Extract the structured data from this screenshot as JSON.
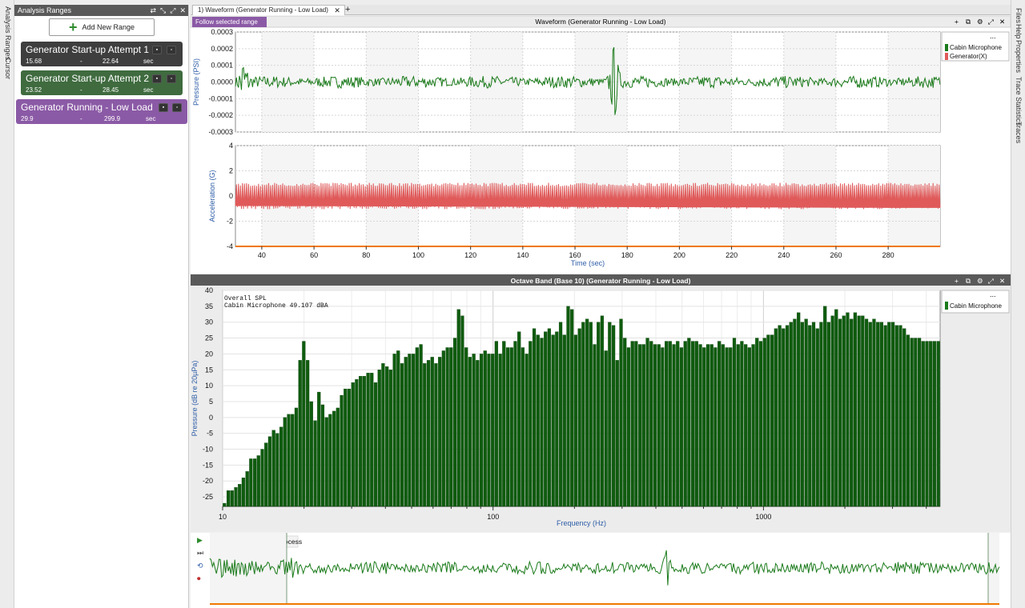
{
  "left_strip": {
    "items": [
      "Analysis Ranges",
      "Cursor"
    ]
  },
  "right_strip": {
    "items": [
      "Files",
      "Help",
      "Properties",
      "Trace Statistics",
      "Traces"
    ]
  },
  "ranges_panel": {
    "title": "Analysis Ranges",
    "add_button_label": "Add New Range",
    "ranges": [
      {
        "name": "Generator Start-up Attempt 1",
        "start": "15.68",
        "sep": "-",
        "end": "22.64",
        "unit": "sec",
        "color": "#3e3e3e"
      },
      {
        "name": "Generator Start-up Attempt 2",
        "start": "23.52",
        "sep": "-",
        "end": "28.45",
        "unit": "sec",
        "color": "#3f6b3f"
      },
      {
        "name": "Generator Running - Low Load",
        "start": "29.9",
        "sep": "-",
        "end": "299.9",
        "unit": "sec",
        "color": "#8b5aa6",
        "selected": true
      }
    ]
  },
  "tabs": [
    {
      "label": "1) Waveform (Generator Running - Low Load)"
    }
  ],
  "waveform_panel": {
    "title": "Waveform (Generator Running - Low Load)",
    "follow_button": "Follow selected range",
    "legend": [
      {
        "name": "Cabin Microphone",
        "color": "#1a7a1a"
      },
      {
        "name": "Generator(X)",
        "color": "#e05a5a"
      }
    ]
  },
  "octave_panel": {
    "title": "Octave Band (Base 10) (Generator Running - Low Load)",
    "annotation_line1": "Overall SPL",
    "annotation_line2": "Cabin Microphone  49.107  dBA",
    "legend": [
      {
        "name": "Cabin Microphone",
        "color": "#1a7a1a"
      }
    ]
  },
  "analysis_bar": {
    "mode_label": "Analysis Mode: Post process"
  },
  "chart_data": [
    {
      "type": "line",
      "title": "Waveform (Generator Running - Low Load)",
      "ylabel": "Pressure (PSI)",
      "xlabel": "",
      "ylim": [
        -0.0003,
        0.0003
      ],
      "yticks": [
        "0.0003",
        "0.0002",
        "0.0001",
        "0.0000",
        "-0.0001",
        "-0.0002",
        "-0.0003"
      ],
      "xlim": [
        29.9,
        299.9
      ],
      "series": [
        {
          "name": "Cabin Microphone",
          "color": "#1a7a1a",
          "base_amplitude": 3e-05,
          "bursts": [
            {
              "x": 33,
              "amplitude": 0.00014
            },
            {
              "x": 175,
              "amplitude": 0.0002
            }
          ]
        }
      ]
    },
    {
      "type": "line",
      "ylabel": "Acceleration (G)",
      "xlabel": "Time (sec)",
      "ylim": [
        -4,
        4
      ],
      "yticks": [
        "4",
        "2",
        "0",
        "-2",
        "-4"
      ],
      "xlim": [
        29.9,
        299.9
      ],
      "xticks": [
        40,
        60,
        80,
        100,
        120,
        140,
        160,
        180,
        200,
        220,
        240,
        260,
        280
      ],
      "series": [
        {
          "name": "Generator(X)",
          "color": "#e05a5a",
          "amplitude": 1.05
        }
      ]
    },
    {
      "type": "bar",
      "title": "Octave Band (Base 10) (Generator Running - Low Load)",
      "xlabel": "Frequency (Hz)",
      "ylabel": "Pressure (dB re 20µPa)",
      "xscale": "log",
      "xlim": [
        10,
        4500
      ],
      "xticks": [
        "10",
        "100",
        "1000"
      ],
      "ylim": [
        -28,
        40
      ],
      "yticks": [
        40,
        35,
        30,
        25,
        20,
        15,
        10,
        5,
        0,
        -5,
        -10,
        -15,
        -20,
        -25
      ],
      "series": [
        {
          "name": "Cabin Microphone",
          "color": "#0f5c0f",
          "values": [
            -27,
            -23,
            -23,
            -22,
            -21,
            -19,
            -17,
            -13,
            -13,
            -12,
            -10,
            -8,
            -6,
            -4,
            -5,
            -3,
            0,
            1,
            1,
            3,
            18,
            24,
            18,
            5,
            -1,
            8,
            4,
            0,
            1,
            2,
            3,
            7,
            9,
            9,
            11,
            12,
            13,
            13,
            14,
            14,
            11,
            15,
            17,
            16,
            15,
            20,
            21,
            17,
            19,
            20,
            20,
            22,
            23,
            17,
            18,
            19,
            17,
            19,
            21,
            22,
            22,
            25,
            34,
            32,
            22,
            19,
            20,
            18,
            20,
            21,
            20,
            20,
            24,
            20,
            24,
            22,
            22,
            24,
            27,
            22,
            20,
            24,
            28,
            26,
            25,
            27,
            28,
            26,
            27,
            30,
            26,
            35,
            34,
            26,
            28,
            30,
            31,
            30,
            23,
            30,
            32,
            21,
            30,
            29,
            18,
            31,
            25,
            22,
            24,
            24,
            23,
            23,
            25,
            24,
            23,
            23,
            22,
            24,
            24,
            23,
            24,
            22,
            24,
            25,
            24,
            24,
            23,
            22,
            23,
            23,
            22,
            24,
            23,
            22,
            22,
            25,
            23,
            24,
            23,
            22,
            23,
            25,
            24,
            25,
            26,
            26,
            28,
            29,
            28,
            29,
            30,
            31,
            33,
            30,
            31,
            29,
            30,
            28,
            30,
            35,
            30,
            32,
            34,
            31,
            32,
            33,
            31,
            33,
            32,
            32,
            31,
            30,
            31,
            30,
            30,
            29,
            30,
            30,
            29,
            29,
            28,
            26,
            25,
            25,
            25,
            24,
            24,
            24,
            24,
            24
          ]
        }
      ]
    },
    {
      "type": "line",
      "title": "Analysis Mode: Post process",
      "series": [
        {
          "name": "Cabin Microphone",
          "color": "#1a7a1a"
        }
      ]
    }
  ]
}
